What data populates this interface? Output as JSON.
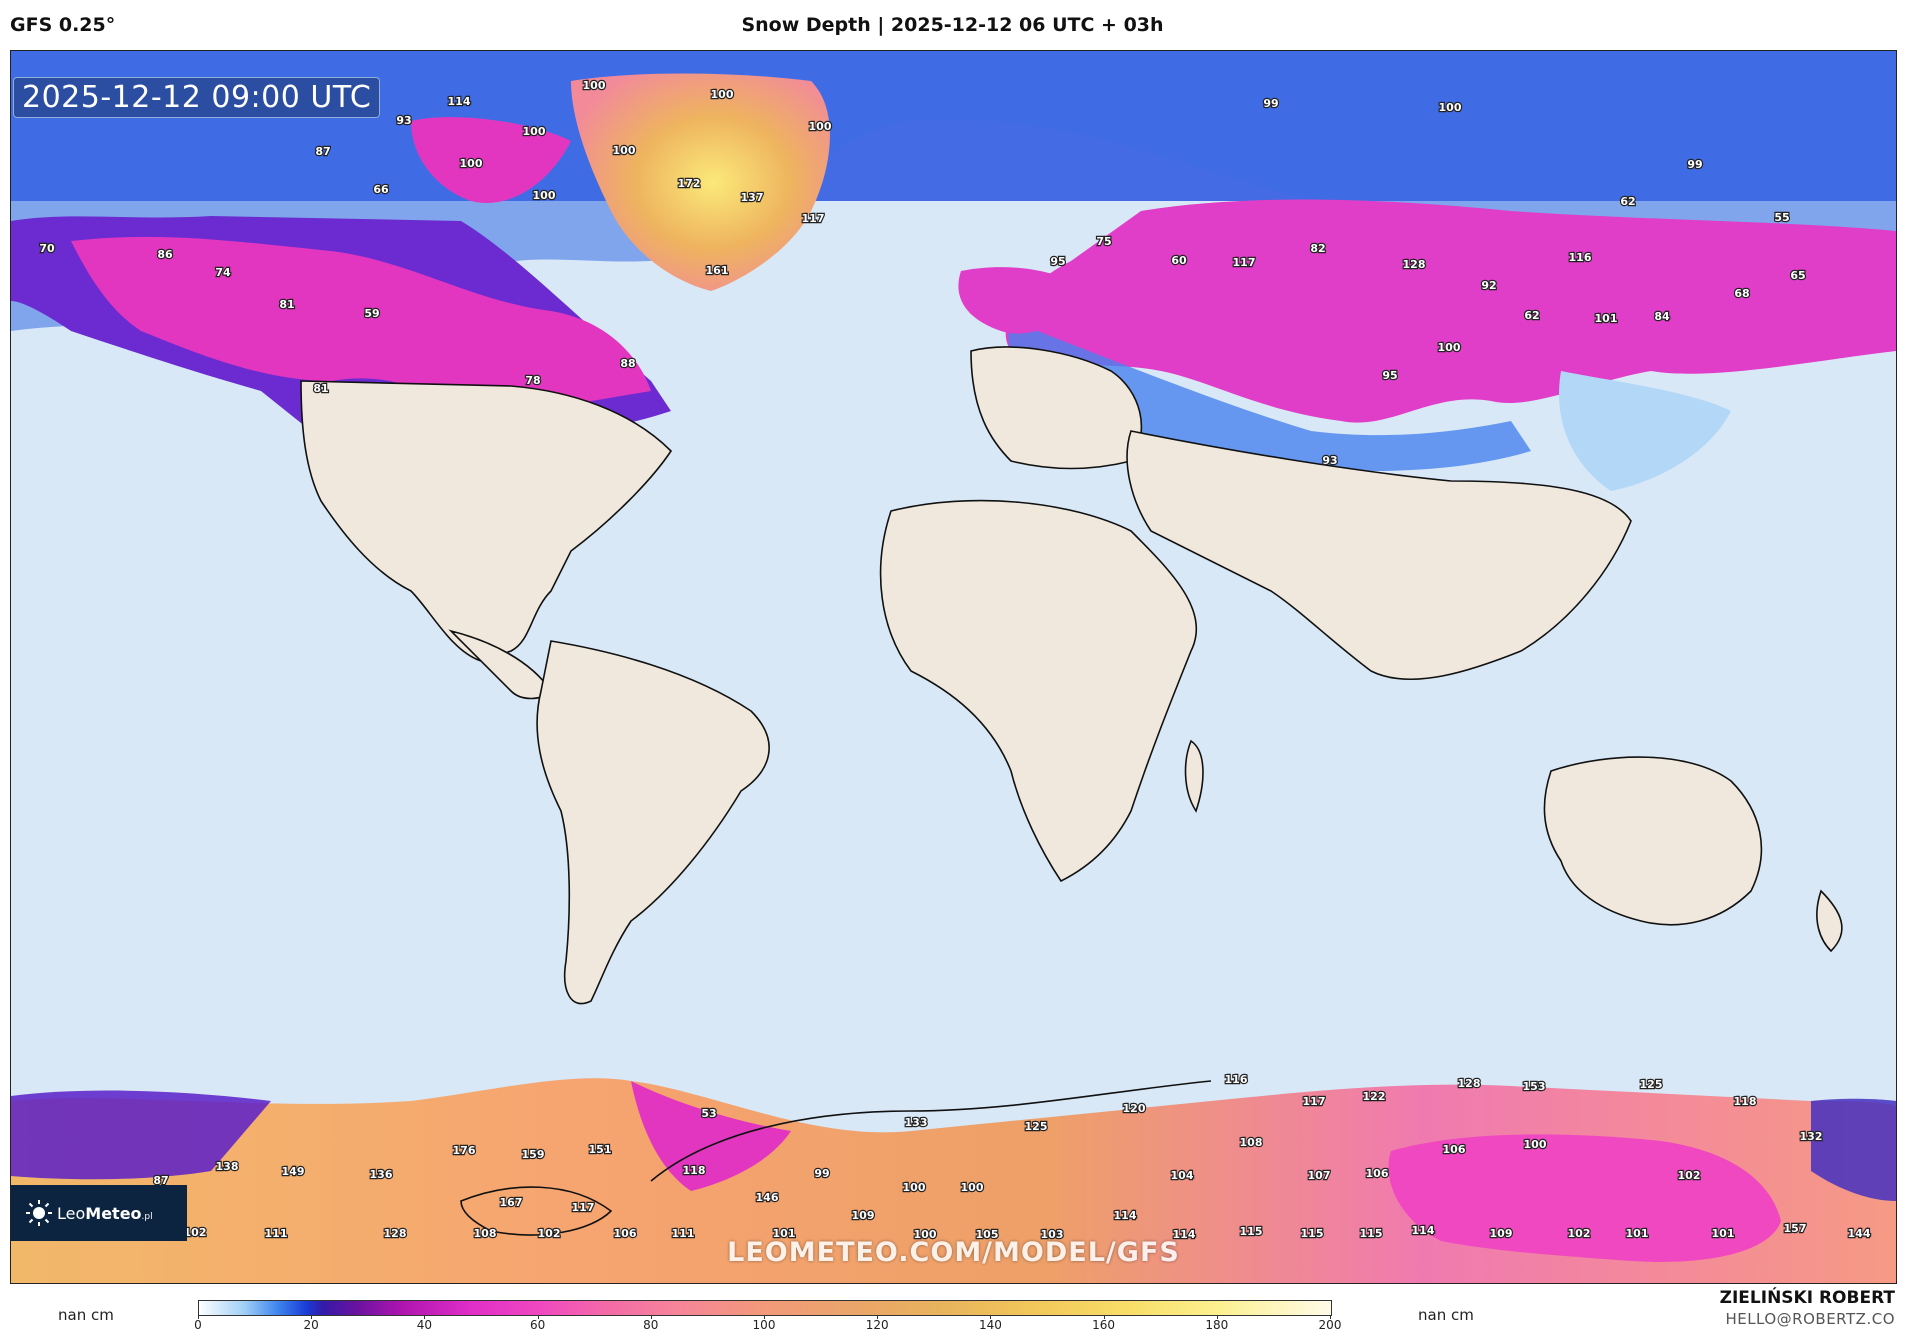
{
  "header": {
    "model": "GFS 0.25°",
    "title": "Snow Depth | 2025-12-12 06 UTC + 03h"
  },
  "map": {
    "valid_time": "2025-12-12 09:00 UTC",
    "watermark": "LEOMETEO.COM/MODEL/GFS",
    "labels": [
      {
        "v": "100"
      },
      {
        "v": "114"
      },
      {
        "v": "93"
      },
      {
        "v": "100"
      },
      {
        "v": "100"
      },
      {
        "v": "100"
      },
      {
        "v": "100"
      },
      {
        "v": "87"
      },
      {
        "v": "100"
      },
      {
        "v": "66"
      },
      {
        "v": "100"
      },
      {
        "v": "172"
      },
      {
        "v": "137"
      },
      {
        "v": "117"
      },
      {
        "v": "161"
      },
      {
        "v": "70"
      },
      {
        "v": "86"
      },
      {
        "v": "74"
      },
      {
        "v": "81"
      },
      {
        "v": "59"
      },
      {
        "v": "88"
      },
      {
        "v": "78"
      },
      {
        "v": "81"
      },
      {
        "v": "99"
      },
      {
        "v": "100"
      },
      {
        "v": "99"
      },
      {
        "v": "62"
      },
      {
        "v": "55"
      },
      {
        "v": "95"
      },
      {
        "v": "75"
      },
      {
        "v": "60"
      },
      {
        "v": "117"
      },
      {
        "v": "82"
      },
      {
        "v": "128"
      },
      {
        "v": "92"
      },
      {
        "v": "116"
      },
      {
        "v": "68"
      },
      {
        "v": "65"
      },
      {
        "v": "62"
      },
      {
        "v": "101"
      },
      {
        "v": "84"
      },
      {
        "v": "100"
      },
      {
        "v": "95"
      },
      {
        "v": "93"
      },
      {
        "v": "116"
      },
      {
        "v": "117"
      },
      {
        "v": "122"
      },
      {
        "v": "128"
      },
      {
        "v": "153"
      },
      {
        "v": "125"
      },
      {
        "v": "118"
      },
      {
        "v": "53"
      },
      {
        "v": "120"
      },
      {
        "v": "133"
      },
      {
        "v": "125"
      },
      {
        "v": "108"
      },
      {
        "v": "106"
      },
      {
        "v": "100"
      },
      {
        "v": "132"
      },
      {
        "v": "176"
      },
      {
        "v": "159"
      },
      {
        "v": "151"
      },
      {
        "v": "138"
      },
      {
        "v": "149"
      },
      {
        "v": "136"
      },
      {
        "v": "87"
      },
      {
        "v": "118"
      },
      {
        "v": "99"
      },
      {
        "v": "104"
      },
      {
        "v": "107"
      },
      {
        "v": "106"
      },
      {
        "v": "102"
      },
      {
        "v": "100"
      },
      {
        "v": "100"
      },
      {
        "v": "167"
      },
      {
        "v": "117"
      },
      {
        "v": "146"
      },
      {
        "v": "109"
      },
      {
        "v": "114"
      },
      {
        "v": "114"
      },
      {
        "v": "102"
      },
      {
        "v": "111"
      },
      {
        "v": "128"
      },
      {
        "v": "108"
      },
      {
        "v": "102"
      },
      {
        "v": "106"
      },
      {
        "v": "111"
      },
      {
        "v": "101"
      },
      {
        "v": "100"
      },
      {
        "v": "105"
      },
      {
        "v": "103"
      },
      {
        "v": "114"
      },
      {
        "v": "115"
      },
      {
        "v": "115"
      },
      {
        "v": "115"
      },
      {
        "v": "109"
      },
      {
        "v": "102"
      },
      {
        "v": "101"
      },
      {
        "v": "101"
      },
      {
        "v": "157"
      },
      {
        "v": "144"
      }
    ]
  },
  "logo": {
    "name_light": "Leo",
    "name_bold": "Meteo",
    "suffix": ".pl"
  },
  "legend": {
    "left_nan": "nan cm",
    "right_nan": "nan cm",
    "ticks": [
      "0",
      "20",
      "40",
      "60",
      "80",
      "100",
      "120",
      "140",
      "160",
      "180",
      "200"
    ],
    "range": [
      0,
      200
    ],
    "units": "cm"
  },
  "credit": {
    "name": "ZIELIŃSKI ROBERT",
    "email": "HELLO@ROBERTZ.CO"
  },
  "colors": {
    "ocean": "#d8e8f7",
    "land": "#f0e8dc",
    "snow_low": "#3d84ee",
    "snow_mid": "#e02ec8",
    "snow_high": "#f8de68"
  }
}
